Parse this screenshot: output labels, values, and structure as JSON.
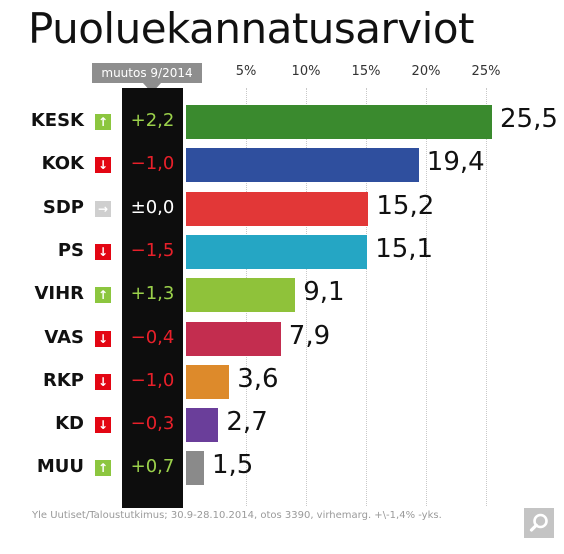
{
  "title": "Puoluekannatusarviot",
  "change_header": "muutos 9/2014",
  "source": "Yle Uutiset/Taloustutkimus; 30.9-28.10.2014, otos 3390, virhemarg. +\\-1,4% -yks.",
  "colors": {
    "up": "#8cc63f",
    "down": "#e30613",
    "neutral": "#cfcfcf",
    "change_up_text": "#9bd14b",
    "change_down_text": "#e8202a",
    "change_neutral_text": "#ffffff"
  },
  "chart_data": {
    "type": "bar",
    "orientation": "horizontal",
    "xlim": [
      0,
      25
    ],
    "x_ticks": [
      "5%",
      "10%",
      "15%",
      "20%",
      "25%"
    ],
    "x_tick_values": [
      5,
      10,
      15,
      20,
      25
    ],
    "grid": true,
    "categories": [
      "KESK",
      "KOK",
      "SDP",
      "PS",
      "VIHR",
      "VAS",
      "RKP",
      "KD",
      "MUU"
    ],
    "values": [
      25.5,
      19.4,
      15.2,
      15.1,
      9.1,
      7.9,
      3.6,
      2.7,
      1.5
    ],
    "value_labels": [
      "25,5",
      "19,4",
      "15,2",
      "15,1",
      "9,1",
      "7,9",
      "3,6",
      "2,7",
      "1,5"
    ],
    "changes": [
      "+2,2",
      "−1,0",
      "±0,0",
      "−1,5",
      "+1,3",
      "−0,4",
      "−1,0",
      "−0,3",
      "+0,7"
    ],
    "directions": [
      "up",
      "down",
      "neutral",
      "down",
      "up",
      "down",
      "down",
      "down",
      "up"
    ],
    "bar_colors": [
      "#3a8a2e",
      "#2f4f9e",
      "#e23737",
      "#25a6c4",
      "#8fc23a",
      "#c32d4f",
      "#dd8a2b",
      "#6a3e9a",
      "#8a8a8a"
    ]
  }
}
